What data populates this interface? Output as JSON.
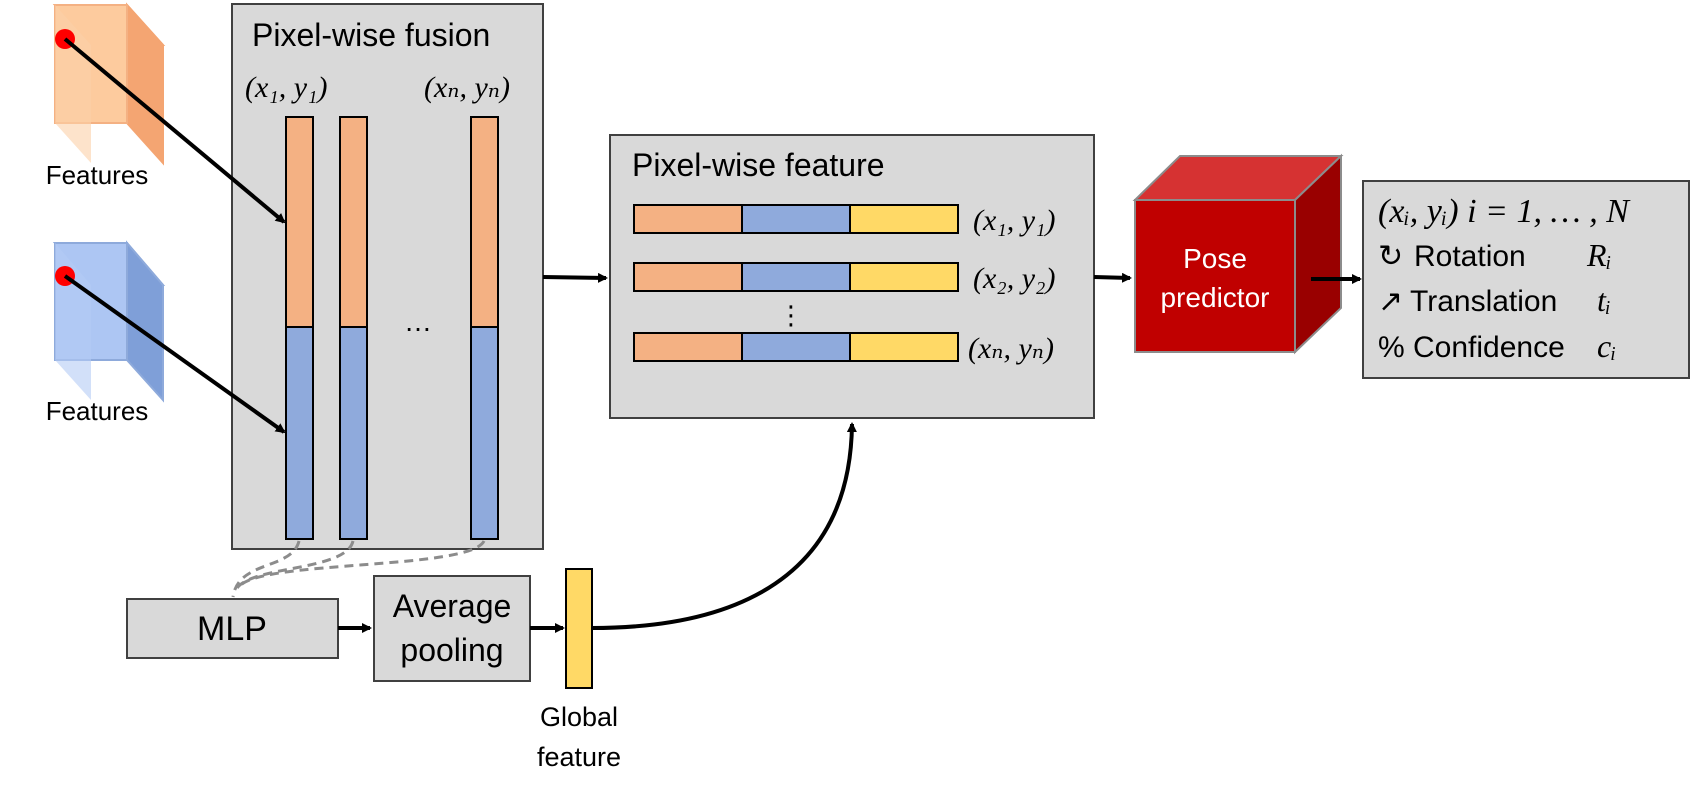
{
  "inputs": {
    "rgb_features_label": "Features",
    "depth_features_label": "Features"
  },
  "fusion": {
    "title": "Pixel-wise fusion",
    "first_coord": "(x₁, y₁)",
    "last_coord": "(xₙ, yₙ)",
    "ellipsis": "…"
  },
  "pixel_feature": {
    "title": "Pixel-wise feature",
    "rows": [
      {
        "coord": "(x₁, y₁)"
      },
      {
        "coord": "(x₂, y₂)"
      },
      {
        "coord": "(xₙ, yₙ)"
      }
    ],
    "vertical_ellipsis": "⋮"
  },
  "mlp": {
    "label": "MLP"
  },
  "pooling": {
    "line1": "Average",
    "line2": "pooling"
  },
  "global_feature": {
    "line1": "Global",
    "line2": "feature"
  },
  "predictor": {
    "line1": "Pose",
    "line2": "predictor"
  },
  "outputs": {
    "line1": "(xᵢ, yᵢ) i = 1, … , N",
    "rotation_icon": "↻",
    "rotation_label": "Rotation",
    "rotation_symbol": "Rᵢ",
    "translation_icon": "↗",
    "translation_label": "Translation",
    "translation_symbol": "tᵢ",
    "confidence_icon": "%",
    "confidence_label": "Confidence",
    "confidence_symbol": "cᵢ"
  },
  "colors": {
    "rgb_feature": "#f4b183",
    "depth_feature": "#8faadc",
    "global_feature": "#ffd966",
    "panel_fill": "#d9d9d9",
    "predictor_front": "#c00000",
    "predictor_top": "#d63232",
    "predictor_side": "#990000",
    "keypoint": "#ff0000"
  }
}
